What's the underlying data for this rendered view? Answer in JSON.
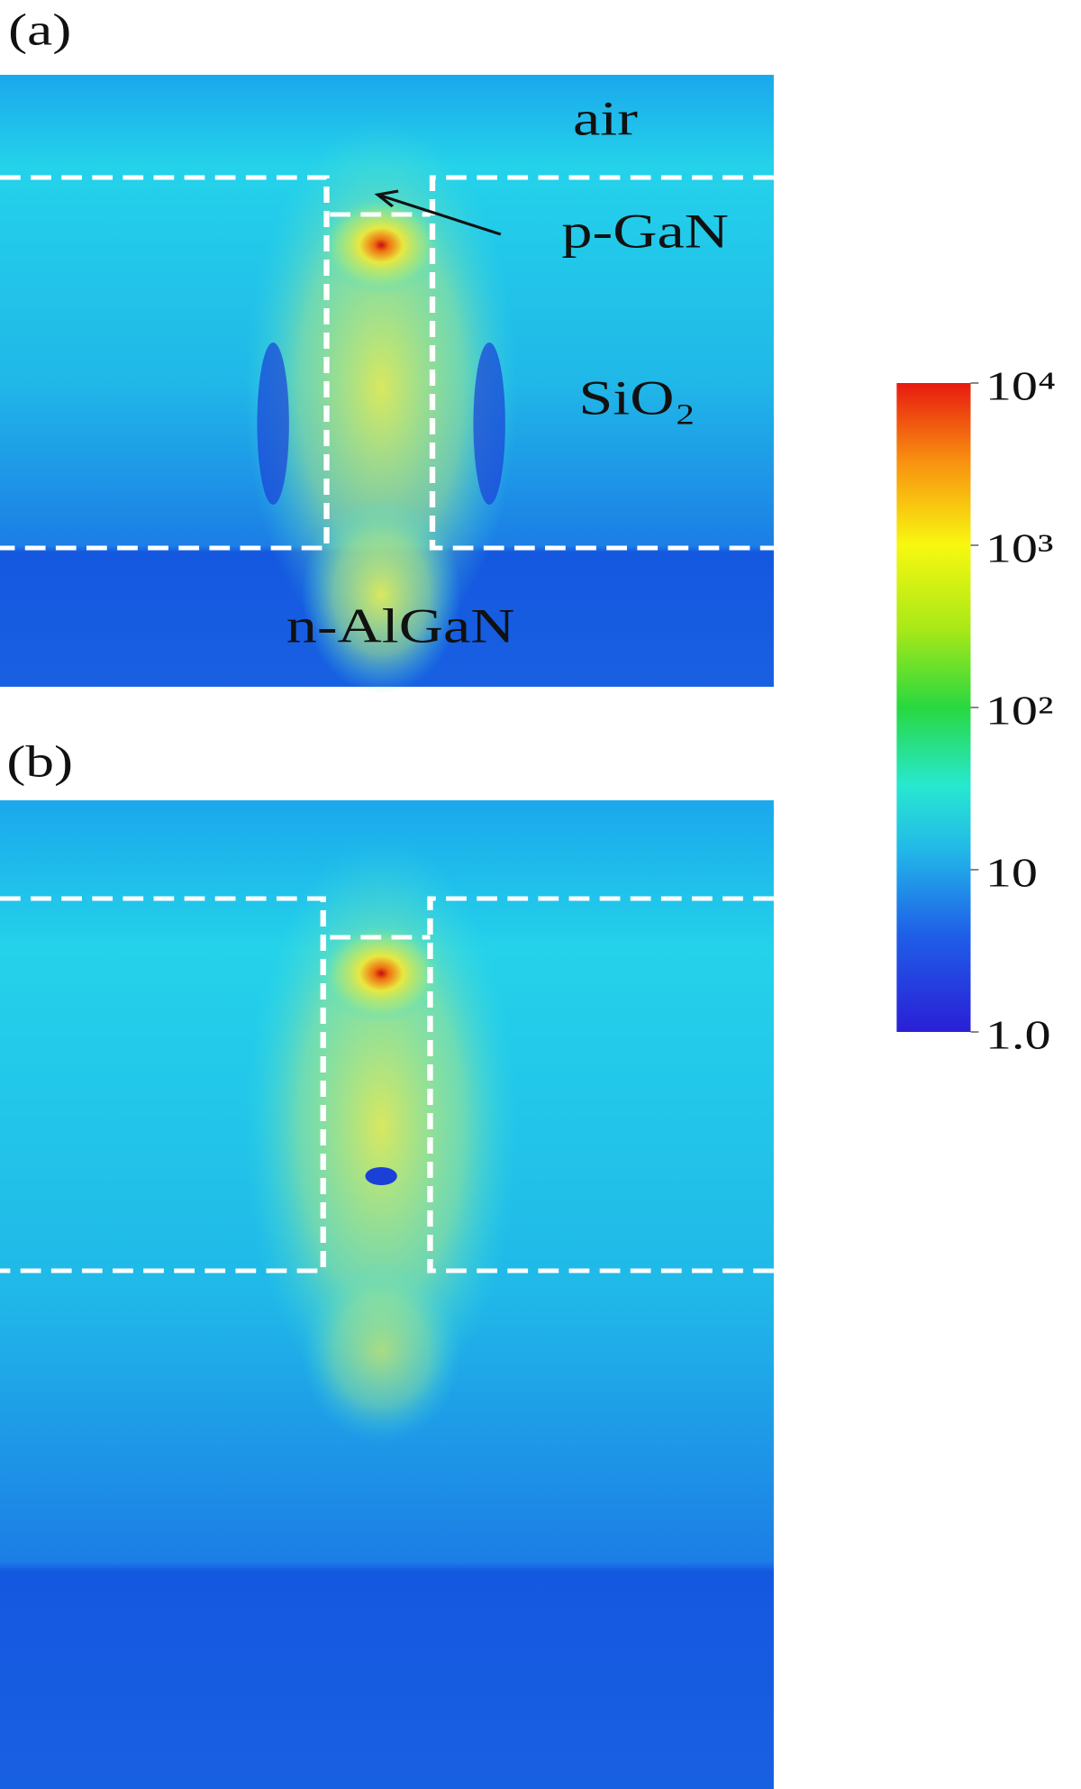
{
  "panels": [
    {
      "label": "(a)",
      "regions": {
        "air": "air",
        "p_gan": "p-GaN",
        "sio2": "SiO₂",
        "n_algan": "n-AlGaN"
      }
    },
    {
      "label": "(b)"
    }
  ],
  "colorbar": {
    "log": true,
    "lim": [
      1,
      10000
    ],
    "ticks": [
      {
        "value": 1,
        "label": "1.0"
      },
      10,
      {
        "value": 100,
        "label": "10²"
      },
      {
        "value": 1000,
        "label": "10³"
      },
      {
        "value": 10000,
        "label": "10⁴"
      }
    ]
  }
}
